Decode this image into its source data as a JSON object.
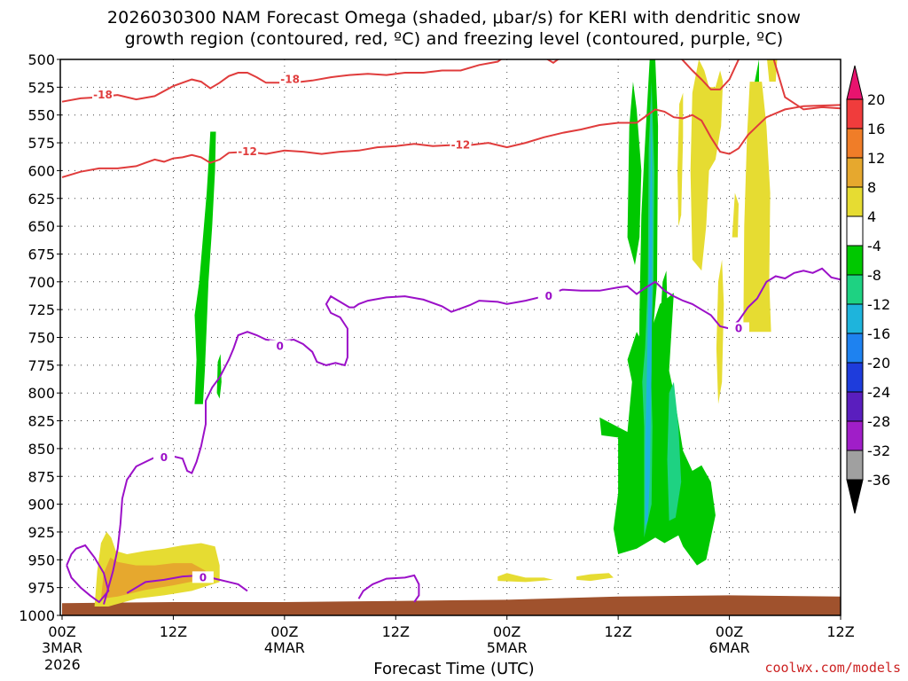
{
  "title_line1": "2026030300 NAM Forecast Omega (shaded, μbar/s) for KERI with dendritic snow",
  "title_line2": "growth region (contoured, red, ºC) and freezing level (contoured, purple, ºC)",
  "credit": "coolwx.com/models",
  "chart_data": {
    "type": "heatmap",
    "title": "2026030300 NAM Forecast Omega (shaded, μbar/s) for KERI with dendritic snow growth region (contoured, red, ºC) and freezing level (contoured, purple, ºC)",
    "xlabel": "Forecast Time (UTC)",
    "ylabel": "",
    "x_ticks": [
      {
        "hour": 0,
        "label": "00Z",
        "sub": "3MAR"
      },
      {
        "hour": 12,
        "label": "12Z",
        "sub": ""
      },
      {
        "hour": 24,
        "label": "00Z",
        "sub": "4MAR"
      },
      {
        "hour": 36,
        "label": "12Z",
        "sub": ""
      },
      {
        "hour": 48,
        "label": "00Z",
        "sub": "5MAR"
      },
      {
        "hour": 60,
        "label": "12Z",
        "sub": ""
      },
      {
        "hour": 72,
        "label": "00Z",
        "sub": "6MAR"
      },
      {
        "hour": 84,
        "label": "12Z",
        "sub": ""
      }
    ],
    "year_label": "2026",
    "xlim": [
      0,
      84
    ],
    "y_ticks": [
      500,
      525,
      550,
      575,
      600,
      625,
      650,
      675,
      700,
      725,
      750,
      775,
      800,
      825,
      850,
      875,
      900,
      925,
      950,
      975,
      1000
    ],
    "ylim": [
      500,
      1000
    ],
    "colorbar": {
      "labels": [
        "20",
        "16",
        "12",
        "8",
        "4",
        "-4",
        "-8",
        "-12",
        "-16",
        "-20",
        "-24",
        "-28",
        "-32",
        "-36"
      ],
      "colors": [
        "#e8136e",
        "#f03c3c",
        "#f07d28",
        "#e6a82e",
        "#e6dc32",
        "#ffffff",
        "#00c800",
        "#1ed282",
        "#1eb4dc",
        "#1e82f0",
        "#1e3cdc",
        "#5a1ebe",
        "#a01ec8",
        "#a0a0a0",
        "#000000"
      ]
    },
    "contours": {
      "minus18": {
        "label": "-18",
        "color": "#e03c3c",
        "points": [
          [
            0,
            538
          ],
          [
            2,
            535
          ],
          [
            4,
            534
          ],
          [
            6,
            532
          ],
          [
            8,
            536
          ],
          [
            10,
            533
          ],
          [
            12,
            524
          ],
          [
            14,
            518
          ],
          [
            15,
            520
          ],
          [
            16,
            526
          ],
          [
            17,
            521
          ],
          [
            18,
            515
          ],
          [
            19,
            512
          ],
          [
            20,
            512
          ],
          [
            21,
            516
          ],
          [
            22,
            521
          ],
          [
            23,
            521
          ],
          [
            25,
            521
          ],
          [
            27,
            519
          ],
          [
            29,
            516
          ],
          [
            31,
            514
          ],
          [
            33,
            513
          ],
          [
            35,
            514
          ],
          [
            37,
            512
          ],
          [
            39,
            512
          ],
          [
            41,
            510
          ],
          [
            43,
            510
          ],
          [
            45,
            505
          ],
          [
            47,
            502
          ],
          [
            48,
            496
          ],
          [
            50,
            497
          ],
          [
            52,
            498
          ],
          [
            53,
            503
          ],
          [
            54,
            497
          ],
          [
            56,
            496
          ],
          [
            58,
            495
          ],
          [
            60,
            494
          ],
          [
            62,
            496
          ],
          [
            64,
            494
          ],
          [
            66,
            492
          ],
          [
            68,
            510
          ],
          [
            69,
            518
          ],
          [
            70,
            527
          ],
          [
            71,
            527
          ],
          [
            72,
            518
          ],
          [
            73,
            500
          ],
          [
            74,
            485
          ],
          [
            76,
            478
          ],
          [
            78,
            534
          ],
          [
            80,
            545
          ],
          [
            82,
            543
          ],
          [
            84,
            544
          ]
        ]
      },
      "minus12": {
        "label": "-12",
        "color": "#e03c3c",
        "points": [
          [
            0,
            606
          ],
          [
            2,
            601
          ],
          [
            4,
            598
          ],
          [
            6,
            598
          ],
          [
            8,
            596
          ],
          [
            9,
            593
          ],
          [
            10,
            590
          ],
          [
            11,
            592
          ],
          [
            12,
            589
          ],
          [
            13,
            588
          ],
          [
            14,
            586
          ],
          [
            15,
            588
          ],
          [
            16,
            593
          ],
          [
            17,
            590
          ],
          [
            18,
            584
          ],
          [
            20,
            583
          ],
          [
            22,
            585
          ],
          [
            24,
            582
          ],
          [
            26,
            583
          ],
          [
            28,
            585
          ],
          [
            30,
            583
          ],
          [
            32,
            582
          ],
          [
            34,
            579
          ],
          [
            36,
            578
          ],
          [
            38,
            576
          ],
          [
            40,
            578
          ],
          [
            42,
            577
          ],
          [
            44,
            577
          ],
          [
            46,
            575
          ],
          [
            48,
            579
          ],
          [
            50,
            575
          ],
          [
            52,
            570
          ],
          [
            54,
            566
          ],
          [
            56,
            563
          ],
          [
            58,
            559
          ],
          [
            60,
            557
          ],
          [
            62,
            557
          ],
          [
            63,
            551
          ],
          [
            64,
            545
          ],
          [
            65,
            547
          ],
          [
            66,
            552
          ],
          [
            67,
            553
          ],
          [
            68,
            550
          ],
          [
            69,
            555
          ],
          [
            70,
            570
          ],
          [
            71,
            583
          ],
          [
            72,
            585
          ],
          [
            73,
            580
          ],
          [
            74,
            568
          ],
          [
            75,
            560
          ],
          [
            76,
            552
          ],
          [
            78,
            545
          ],
          [
            80,
            542
          ],
          [
            84,
            541
          ]
        ]
      },
      "freezing": {
        "label": "0",
        "color": "#9b10c8",
        "segments": [
          [
            [
              0.5,
              955
            ],
            [
              1,
              945
            ],
            [
              1.5,
              940
            ],
            [
              2.5,
              937
            ],
            [
              3.5,
              948
            ],
            [
              4.5,
              962
            ],
            [
              5,
              978
            ],
            [
              4,
              988
            ],
            [
              3,
              982
            ],
            [
              2,
              975
            ],
            [
              1,
              966
            ],
            [
              0.5,
              955
            ]
          ],
          [
            [
              4.5,
              990
            ],
            [
              5,
              975
            ],
            [
              5.5,
              960
            ],
            [
              6,
              940
            ],
            [
              6.3,
              918
            ],
            [
              6.5,
              895
            ],
            [
              7,
              878
            ],
            [
              8,
              866
            ],
            [
              9,
              862
            ],
            [
              10,
              858
            ],
            [
              11,
              858
            ],
            [
              12,
              857
            ],
            [
              13,
              859
            ],
            [
              13.5,
              870
            ],
            [
              14,
              872
            ],
            [
              14.5,
              862
            ],
            [
              15,
              848
            ],
            [
              15.5,
              828
            ],
            [
              15.5,
              807
            ],
            [
              16.2,
              795
            ],
            [
              17,
              786
            ],
            [
              18,
              770
            ],
            [
              18.5,
              760
            ],
            [
              19,
              748
            ],
            [
              20,
              745
            ],
            [
              21,
              748
            ],
            [
              22,
              752
            ],
            [
              23,
              753
            ],
            [
              23.5,
              758
            ],
            [
              24,
              753
            ],
            [
              25,
              752
            ],
            [
              26,
              756
            ],
            [
              27,
              763
            ],
            [
              27.5,
              772
            ],
            [
              28.5,
              775
            ],
            [
              29.5,
              773
            ],
            [
              30.5,
              775
            ],
            [
              30.8,
              768
            ],
            [
              30.8,
              742
            ],
            [
              30,
              732
            ],
            [
              29,
              728
            ],
            [
              28.5,
              720
            ],
            [
              29,
              713
            ],
            [
              30,
              718
            ],
            [
              31,
              723
            ],
            [
              31.5,
              723
            ],
            [
              32,
              720
            ],
            [
              33,
              717
            ],
            [
              35,
              714
            ],
            [
              37,
              713
            ],
            [
              39,
              716
            ],
            [
              41,
              722
            ],
            [
              42,
              727
            ],
            [
              43,
              724
            ],
            [
              44,
              721
            ],
            [
              45,
              717
            ],
            [
              47,
              718
            ],
            [
              48,
              720
            ],
            [
              50,
              717
            ],
            [
              52,
              713
            ],
            [
              54,
              707
            ],
            [
              56,
              708
            ],
            [
              58,
              708
            ],
            [
              60,
              705
            ],
            [
              61,
              704
            ],
            [
              62,
              711
            ],
            [
              63,
              705
            ],
            [
              64,
              700
            ],
            [
              65,
              708
            ],
            [
              66,
              713
            ],
            [
              67,
              717
            ],
            [
              68,
              720
            ],
            [
              69,
              725
            ],
            [
              70,
              730
            ],
            [
              71,
              740
            ],
            [
              72,
              742
            ],
            [
              73,
              735
            ],
            [
              74,
              723
            ],
            [
              75,
              715
            ],
            [
              76,
              700
            ],
            [
              77,
              695
            ],
            [
              78,
              697
            ],
            [
              79,
              692
            ],
            [
              80,
              690
            ],
            [
              81,
              692
            ],
            [
              82,
              688
            ],
            [
              83,
              696
            ],
            [
              84,
              698
            ]
          ],
          [
            [
              32,
              985
            ],
            [
              32.5,
              978
            ],
            [
              33.5,
              972
            ],
            [
              35,
              967
            ],
            [
              37,
              966
            ],
            [
              38,
              964
            ],
            [
              38.5,
              972
            ],
            [
              38.5,
              982
            ],
            [
              38,
              988
            ]
          ],
          [
            [
              7,
              980
            ],
            [
              9,
              970
            ],
            [
              11,
              968
            ],
            [
              13,
              965
            ],
            [
              15,
              964
            ],
            [
              17,
              968
            ],
            [
              19,
              972
            ],
            [
              20,
              978
            ]
          ]
        ]
      }
    },
    "omega_shading_note": "shaded regions in μbar/s"
  }
}
